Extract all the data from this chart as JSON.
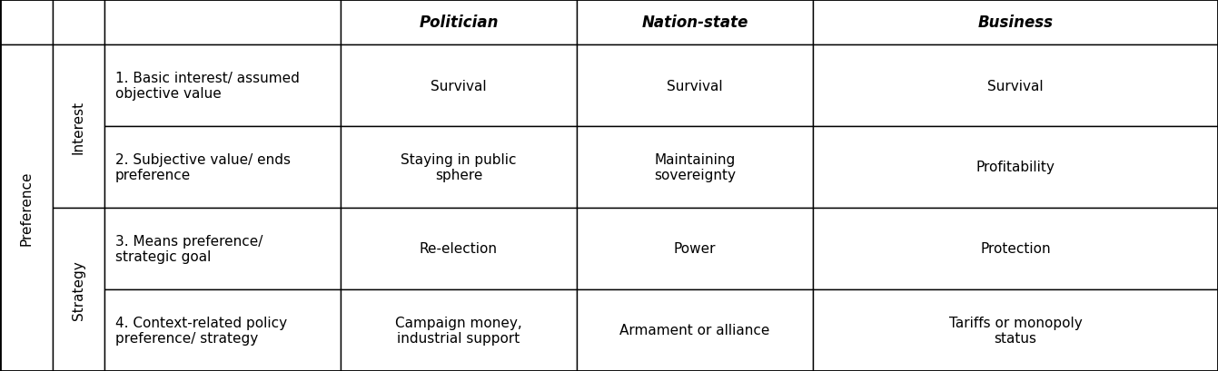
{
  "header_labels": [
    "Politician",
    "Nation-state",
    "Business"
  ],
  "row_descriptions": [
    "1. Basic interest/ assumed\nobjective value",
    "2. Subjective value/ ends\npreference",
    "3. Means preference/\nstrategic goal",
    "4. Context-related policy\npreference/ strategy"
  ],
  "col_politician": [
    "Survival",
    "Staying in public\nsphere",
    "Re-election",
    "Campaign money,\nindustrial support"
  ],
  "col_nation": [
    "Survival",
    "Maintaining\nsovereignty",
    "Power",
    "Armament or alliance"
  ],
  "col_business": [
    "Survival",
    "Profitability",
    "Protection",
    "Tariffs or monopoly\nstatus"
  ],
  "bg_color": "#ffffff",
  "text_color": "#000000",
  "header_fontsize": 12,
  "body_fontsize": 11,
  "label_fontsize": 11
}
